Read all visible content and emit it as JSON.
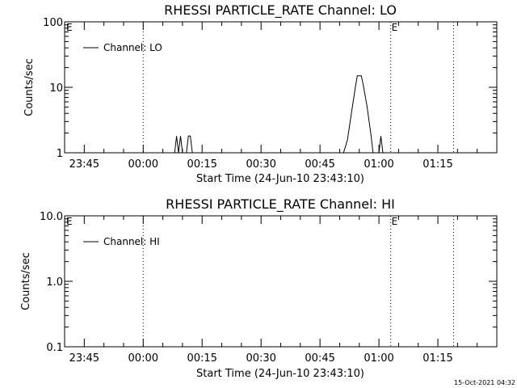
{
  "timestamp": "15-Oct-2021 04:32",
  "chart_data": [
    {
      "type": "line",
      "title": "RHESSI PARTICLE_RATE Channel: LO",
      "xlabel": "Start Time (24-Jun-10 23:43:10)",
      "ylabel": "Counts/sec",
      "yscale": "log",
      "ylim": [
        1,
        100
      ],
      "yticks": [
        "1",
        "10",
        "100"
      ],
      "xlim": [
        "23:40",
        "01:30"
      ],
      "xticks": [
        "23:45",
        "00:00",
        "00:15",
        "00:30",
        "00:45",
        "01:00",
        "01:15"
      ],
      "eclipse_lines": [
        "00:00",
        "01:03",
        "01:19"
      ],
      "eclipse_label": "E",
      "legend": {
        "position": "top-left",
        "entries": [
          "Channel: LO"
        ]
      },
      "series": [
        {
          "name": "Channel: LO",
          "points": [
            [
              "00:08",
              1.0
            ],
            [
              "00:08.5",
              1.8
            ],
            [
              "00:09",
              1.0
            ],
            [
              "00:09.5",
              1.8
            ],
            [
              "00:10",
              1.0
            ],
            [
              "00:11",
              1.0
            ],
            [
              "00:11.5",
              1.8
            ],
            [
              "00:12",
              1.8
            ],
            [
              "00:12.5",
              1.0
            ],
            [
              "00:51",
              1.0
            ],
            [
              "00:52",
              1.6
            ],
            [
              "00:53",
              4.0
            ],
            [
              "00:54",
              10.0
            ],
            [
              "00:54.5",
              15.0
            ],
            [
              "00:55.5",
              15.0
            ],
            [
              "00:56",
              11.0
            ],
            [
              "00:57",
              5.0
            ],
            [
              "00:58",
              1.8
            ],
            [
              "00:58.5",
              1.0
            ],
            [
              "01:00",
              1.0
            ],
            [
              "01:00.5",
              1.8
            ],
            [
              "01:01",
              1.0
            ]
          ]
        }
      ]
    },
    {
      "type": "line",
      "title": "RHESSI PARTICLE_RATE Channel: HI",
      "xlabel": "Start Time (24-Jun-10 23:43:10)",
      "ylabel": "Counts/sec",
      "yscale": "log",
      "ylim": [
        0.1,
        10
      ],
      "yticks": [
        "0.1",
        "1.0",
        "10.0"
      ],
      "xlim": [
        "23:40",
        "01:30"
      ],
      "xticks": [
        "23:45",
        "00:00",
        "00:15",
        "00:30",
        "00:45",
        "01:00",
        "01:15"
      ],
      "eclipse_lines": [
        "00:00",
        "01:03",
        "01:19"
      ],
      "eclipse_label": "E",
      "legend": {
        "position": "top-left",
        "entries": [
          "Channel: HI"
        ]
      },
      "series": [
        {
          "name": "Channel: HI",
          "points": []
        }
      ]
    }
  ]
}
